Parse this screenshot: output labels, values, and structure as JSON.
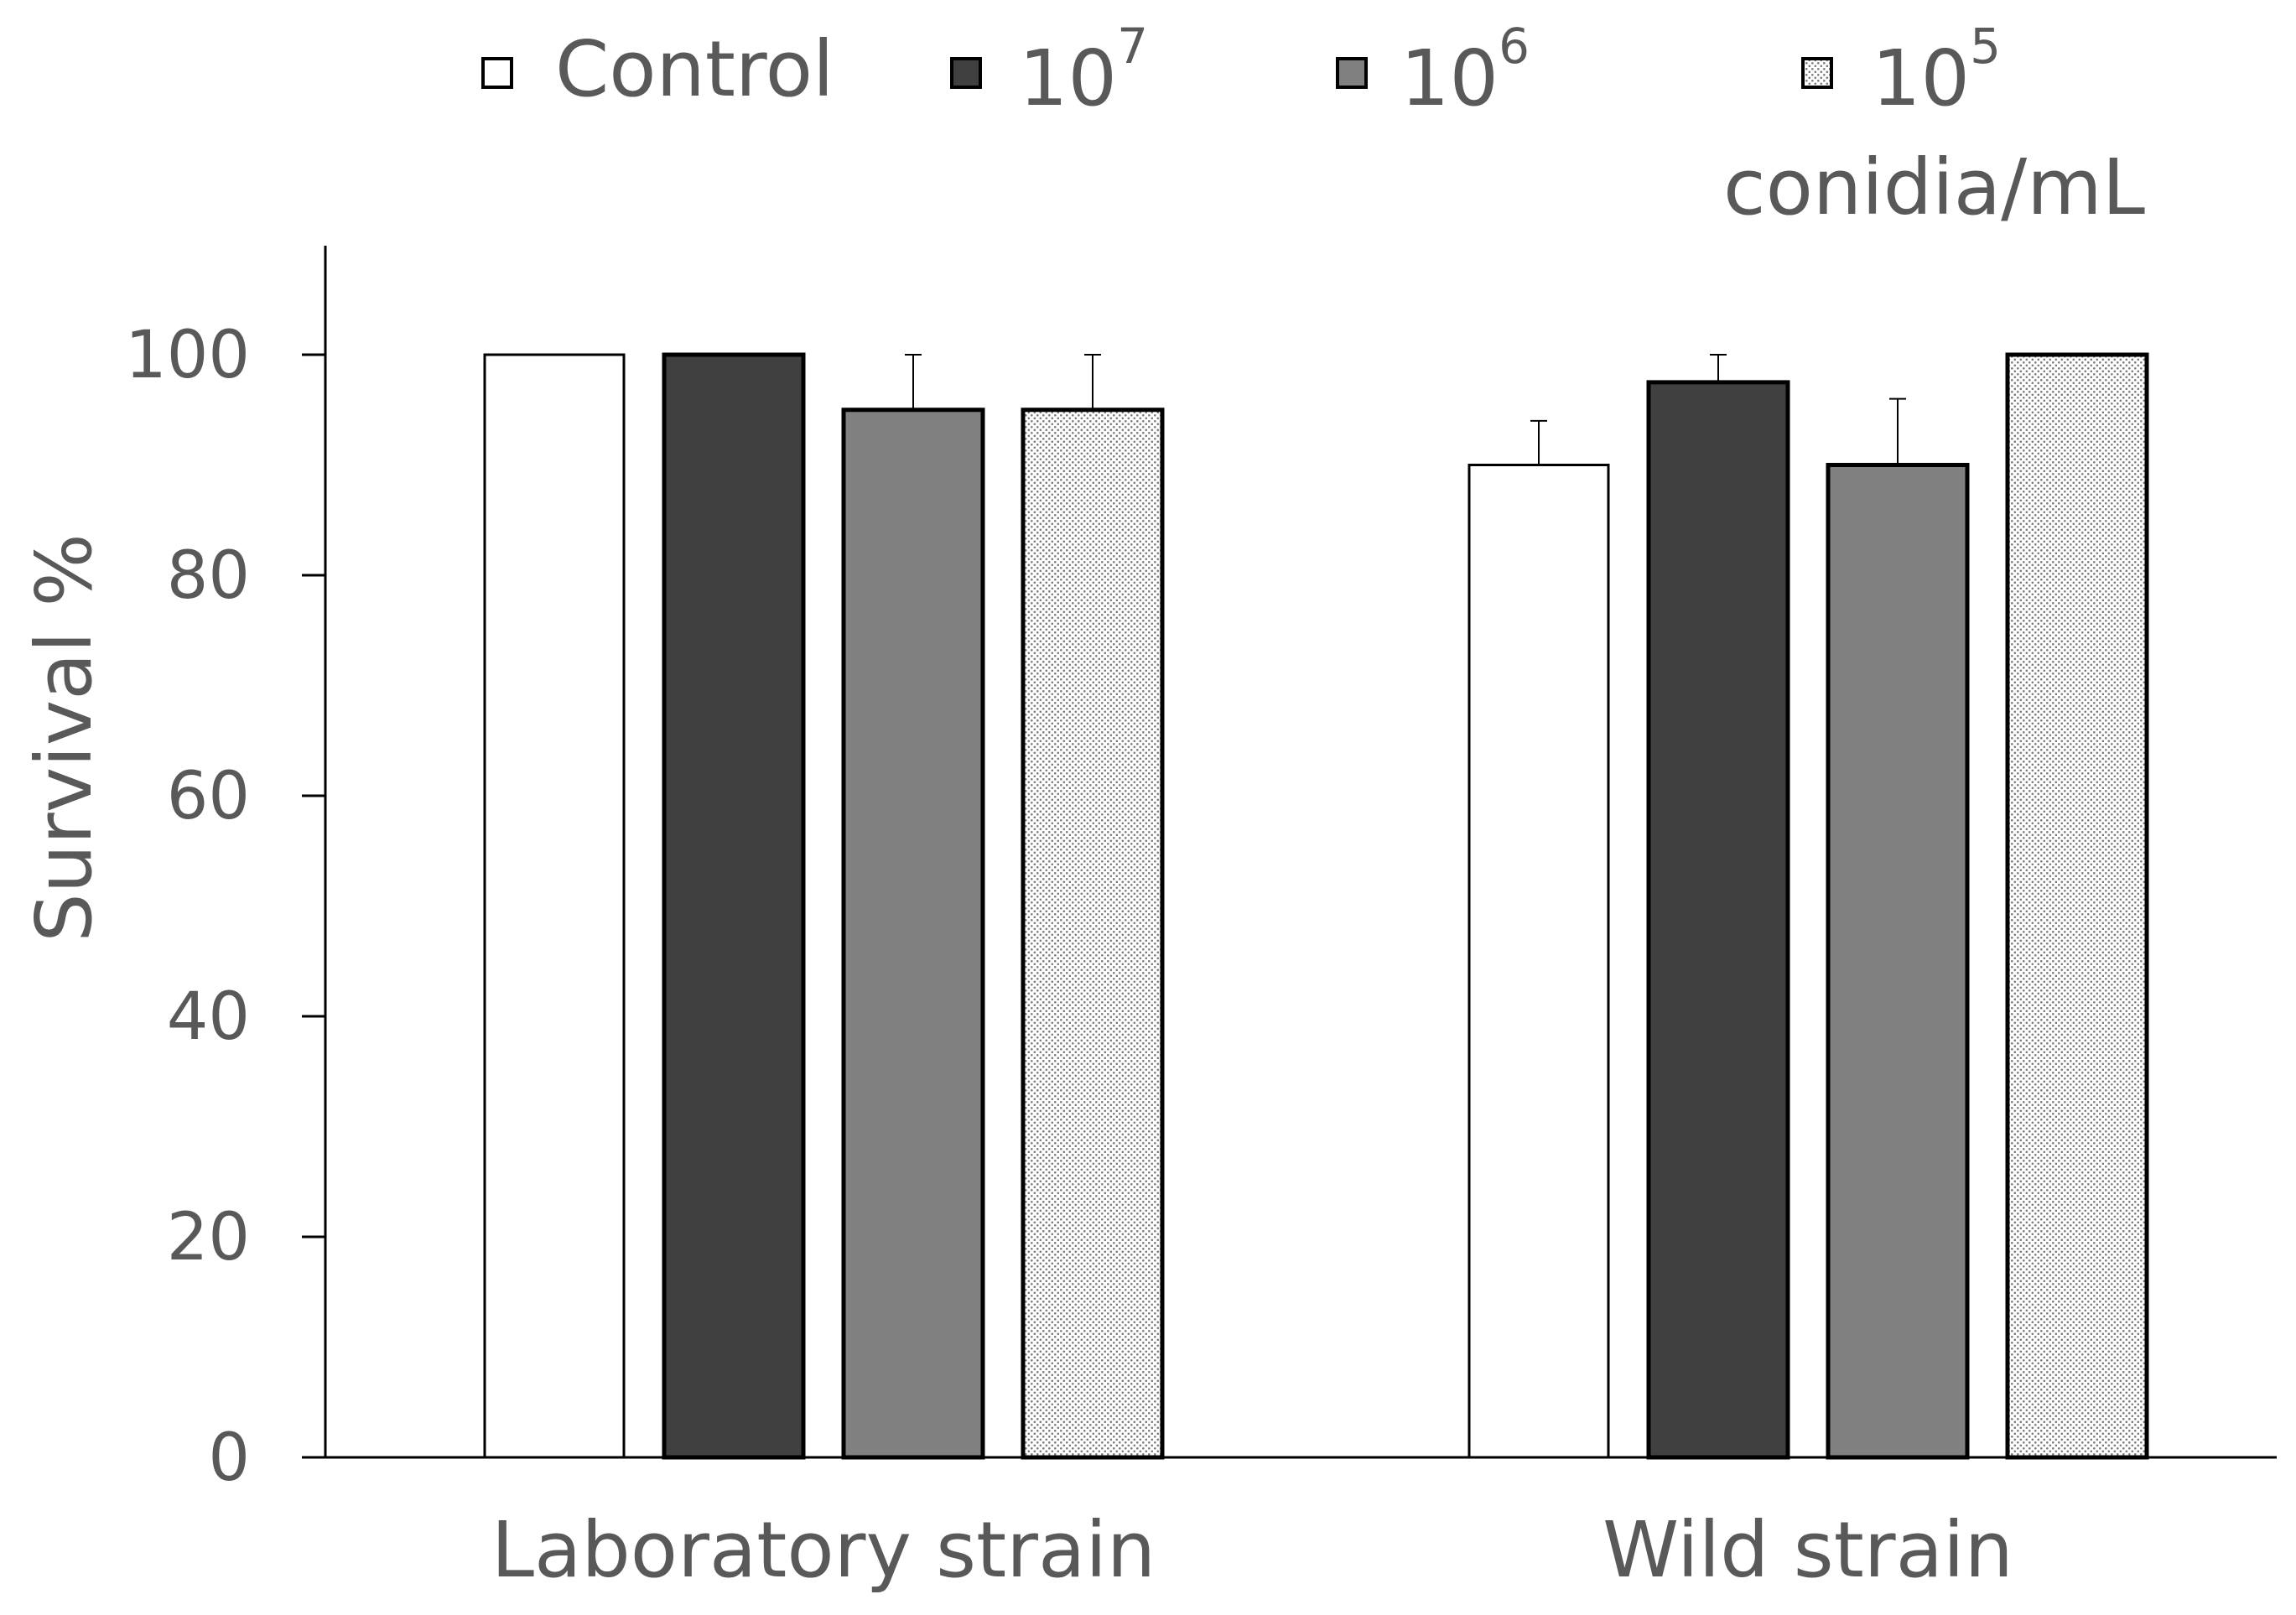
{
  "chart_data": {
    "type": "bar",
    "title": "",
    "xlabel": "",
    "ylabel": "Survival %",
    "ylim": [
      0,
      110
    ],
    "yticks": [
      0,
      20,
      40,
      60,
      80,
      100
    ],
    "categories": [
      "Laboratory strain",
      "Wild strain"
    ],
    "legend_position": "top",
    "legend_unit": "conidia/mL",
    "series": [
      {
        "name": "Control",
        "base": "",
        "exp": "",
        "fill": "#ffffff",
        "pattern": "none",
        "values": [
          100,
          90
        ],
        "errors": [
          0,
          4
        ]
      },
      {
        "name": "10^7",
        "base": "10",
        "exp": "7",
        "fill": "#404040",
        "pattern": "none",
        "values": [
          100,
          97.5
        ],
        "errors": [
          0,
          2.5
        ]
      },
      {
        "name": "10^6",
        "base": "10",
        "exp": "6",
        "fill": "#808080",
        "pattern": "none",
        "values": [
          95,
          90
        ],
        "errors": [
          5,
          6
        ]
      },
      {
        "name": "10^5",
        "base": "10",
        "exp": "5",
        "fill": "#ffffff",
        "pattern": "dots",
        "values": [
          95,
          100
        ],
        "errors": [
          5,
          0
        ]
      }
    ]
  }
}
